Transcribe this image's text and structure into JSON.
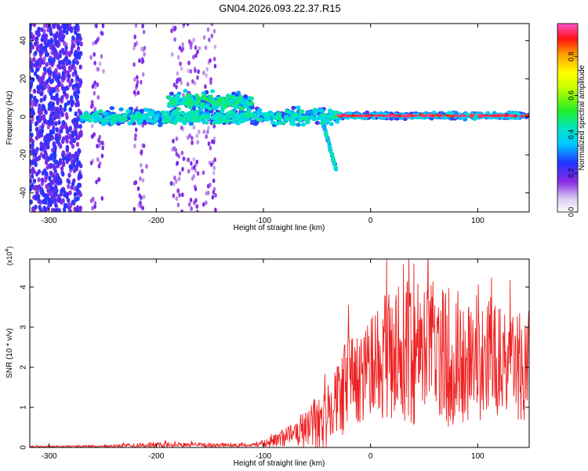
{
  "title": "GN04.2026.093.22.37.R15",
  "chart_data": [
    {
      "type": "heatmap",
      "name": "spectrogram",
      "xlabel": "Height of straight line (km)",
      "ylabel": "Frequency (Hz)",
      "xlim": [
        -318,
        148
      ],
      "ylim": [
        -50,
        49
      ],
      "xticks": [
        -300,
        -200,
        -100,
        0,
        100
      ],
      "yticks": [
        -40,
        -20,
        0,
        20,
        40
      ],
      "colorbar": {
        "label": "Normalized spectral amplitude",
        "range": [
          0,
          0.97
        ],
        "ticks": [
          0.0,
          0.2,
          0.4,
          0.6,
          0.8
        ]
      },
      "features": [
        {
          "region": "scattered noise",
          "x": [
            -318,
            -270
          ],
          "y": [
            -50,
            49
          ]
        },
        {
          "region": "band near 0 Hz",
          "x": [
            -270,
            -30
          ],
          "y": [
            -10,
            8
          ]
        },
        {
          "region": "upper branch",
          "x": [
            -190,
            -110
          ],
          "y": [
            5,
            20
          ]
        },
        {
          "region": "descending feature",
          "x": [
            -45,
            -32
          ],
          "y": [
            -30,
            0
          ]
        },
        {
          "region": "strong narrow band at 0 Hz",
          "x": [
            -30,
            148
          ],
          "y": [
            -3,
            4
          ]
        }
      ]
    },
    {
      "type": "line",
      "name": "snr",
      "xlabel": "Height of straight line (km)",
      "ylabel": "SNR (10 * v/v)",
      "yscale_label": "(x10",
      "yscale_exp": "4",
      "xlim": [
        -318,
        148
      ],
      "ylim": [
        0,
        4.7
      ],
      "xticks": [
        -300,
        -200,
        -100,
        0,
        100
      ],
      "yticks": [
        0,
        1,
        2,
        3,
        4
      ],
      "color": "#ee2222",
      "envelope": {
        "x": [
          -318,
          -250,
          -200,
          -150,
          -110,
          -95,
          -80,
          -70,
          -60,
          -50,
          -40,
          -30,
          -22,
          -10,
          0,
          10,
          30,
          50,
          70,
          90,
          110,
          130,
          148
        ],
        "mean": [
          0.02,
          0.03,
          0.07,
          0.06,
          0.05,
          0.12,
          0.25,
          0.35,
          0.45,
          0.6,
          0.8,
          1.1,
          1.5,
          1.7,
          2.0,
          2.2,
          2.4,
          2.4,
          2.3,
          2.2,
          2.2,
          2.1,
          2.0
        ],
        "amp": [
          0.02,
          0.03,
          0.07,
          0.05,
          0.04,
          0.12,
          0.22,
          0.3,
          0.5,
          0.8,
          0.8,
          1.0,
          1.3,
          1.1,
          1.3,
          1.5,
          1.9,
          1.9,
          1.8,
          1.6,
          1.6,
          1.4,
          1.4
        ]
      }
    }
  ]
}
